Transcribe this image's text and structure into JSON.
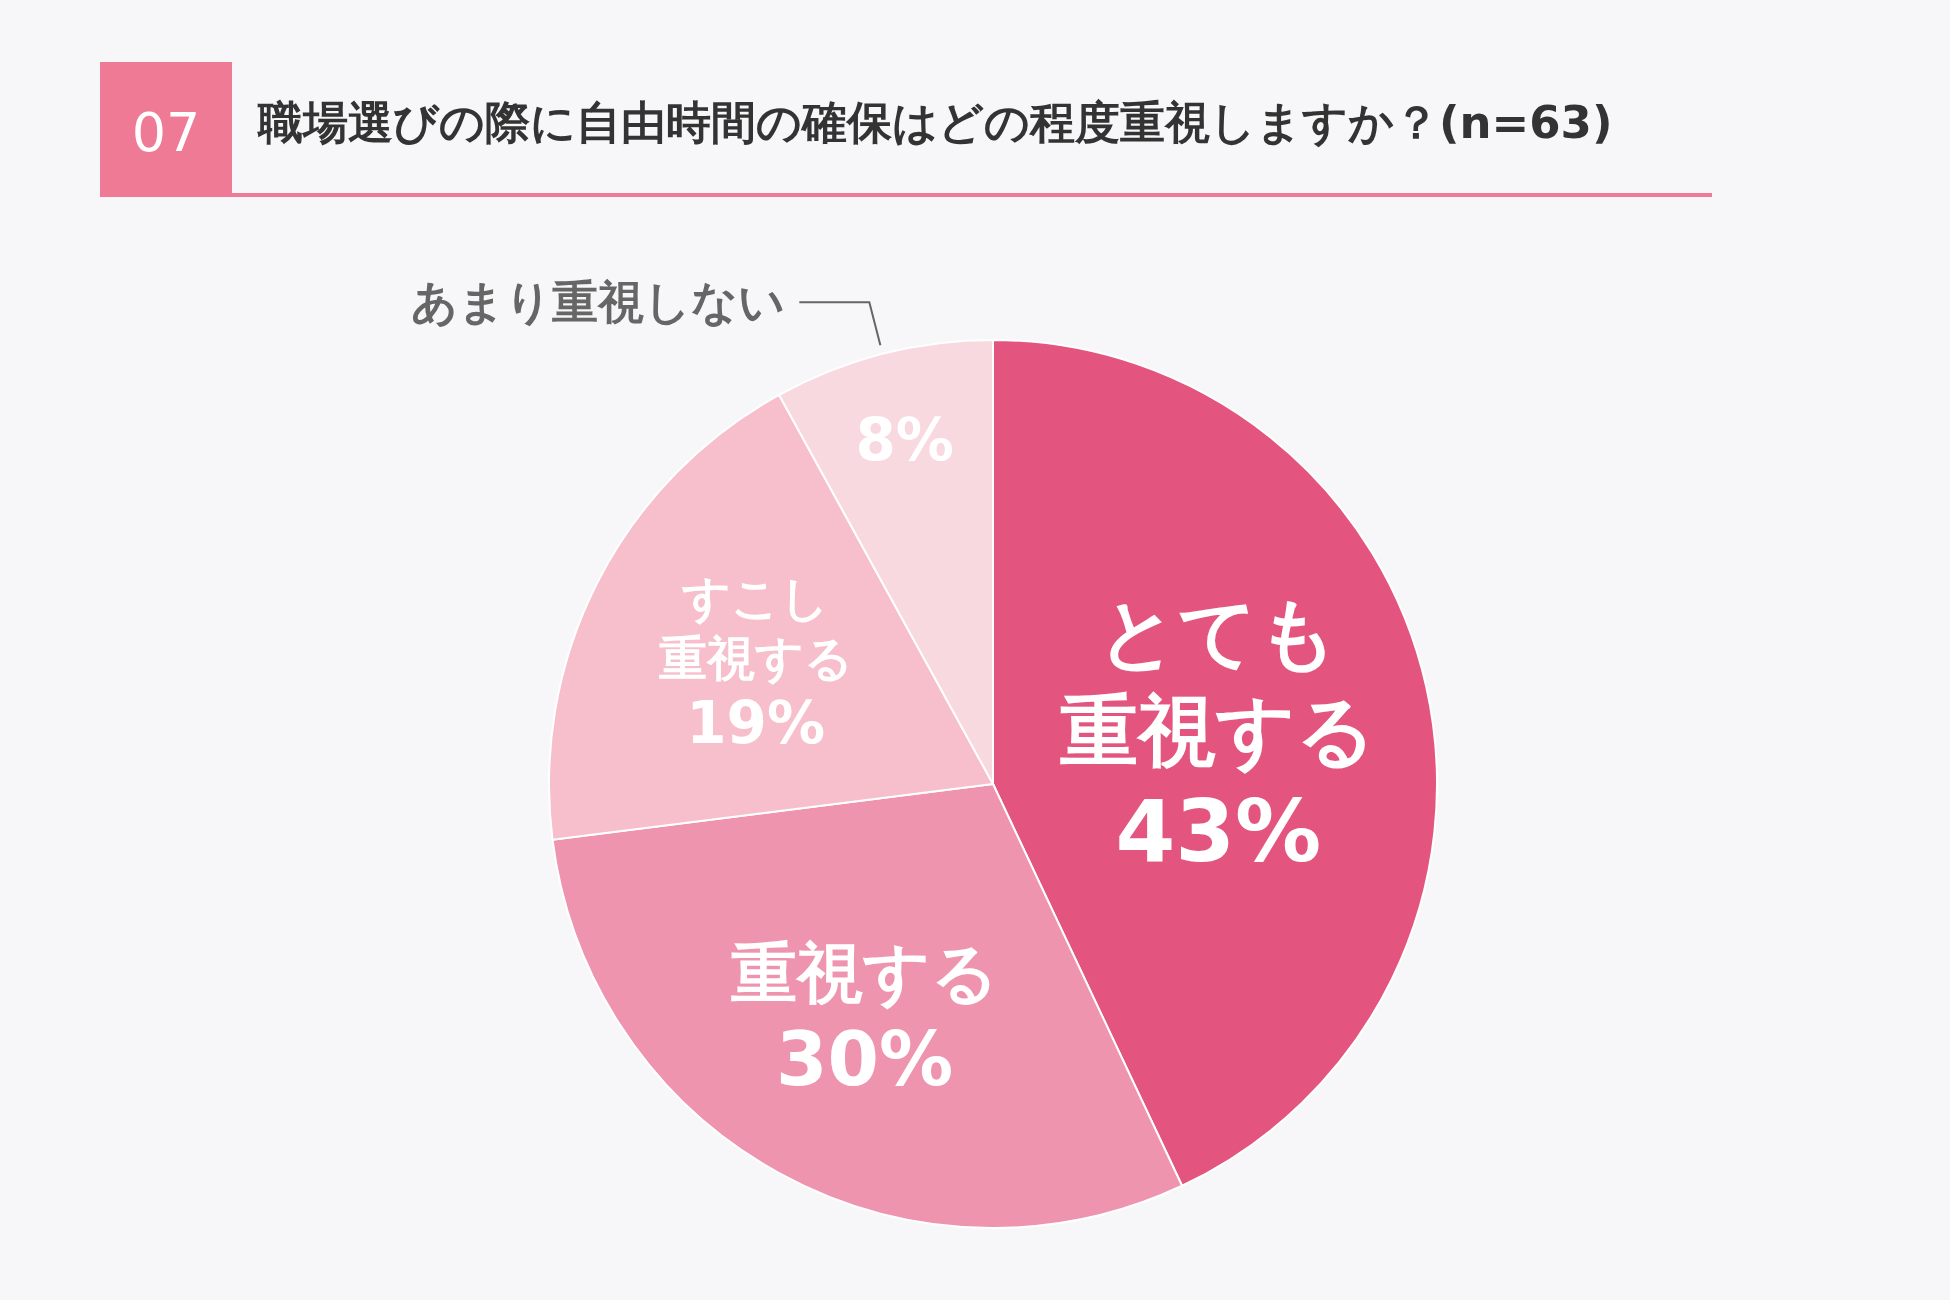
{
  "chart_data": {
    "type": "pie",
    "title": "職場選びの際に自由時間の確保はどの程度重視しますか？(n=63)",
    "annotations": [
      "07"
    ],
    "categories": [
      "とても重視する",
      "重視する",
      "すこし重視する",
      "あまり重視しない"
    ],
    "values": [
      43,
      30,
      19,
      8
    ],
    "colors": [
      "#e3557e",
      "#ee94ae",
      "#f6bfcb",
      "#f9d9e0"
    ],
    "value_labels": [
      "43%",
      "30%",
      "19%",
      "8%"
    ]
  }
}
